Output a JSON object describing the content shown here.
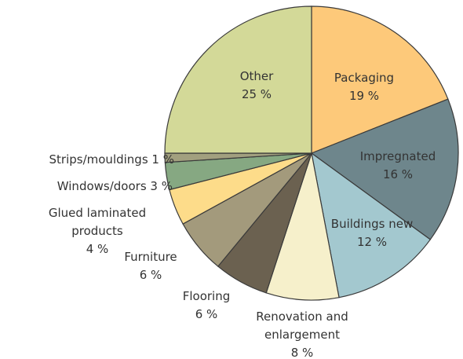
{
  "chart_data": {
    "type": "pie",
    "categories": [
      "Packaging",
      "Impregnated",
      "Buildings new",
      "Renovation and enlargement",
      "Flooring",
      "Furniture",
      "Glued laminated products",
      "Windows/doors",
      "Strips/mouldings",
      "Other"
    ],
    "values": [
      19,
      16,
      12,
      8,
      6,
      6,
      4,
      3,
      1,
      25
    ],
    "value_labels": [
      "19 %",
      "16 %",
      "12 %",
      "8 %",
      "6 %",
      "6 %",
      "4 %",
      "3 %",
      "1 %",
      "25 %"
    ],
    "colors": [
      "#fdc97a",
      "#6e868c",
      "#a3c8cf",
      "#f6f0cb",
      "#6b6150",
      "#a39a7c",
      "#fddc8a",
      "#86a882",
      "#a2a07f",
      "#d3d998"
    ]
  }
}
